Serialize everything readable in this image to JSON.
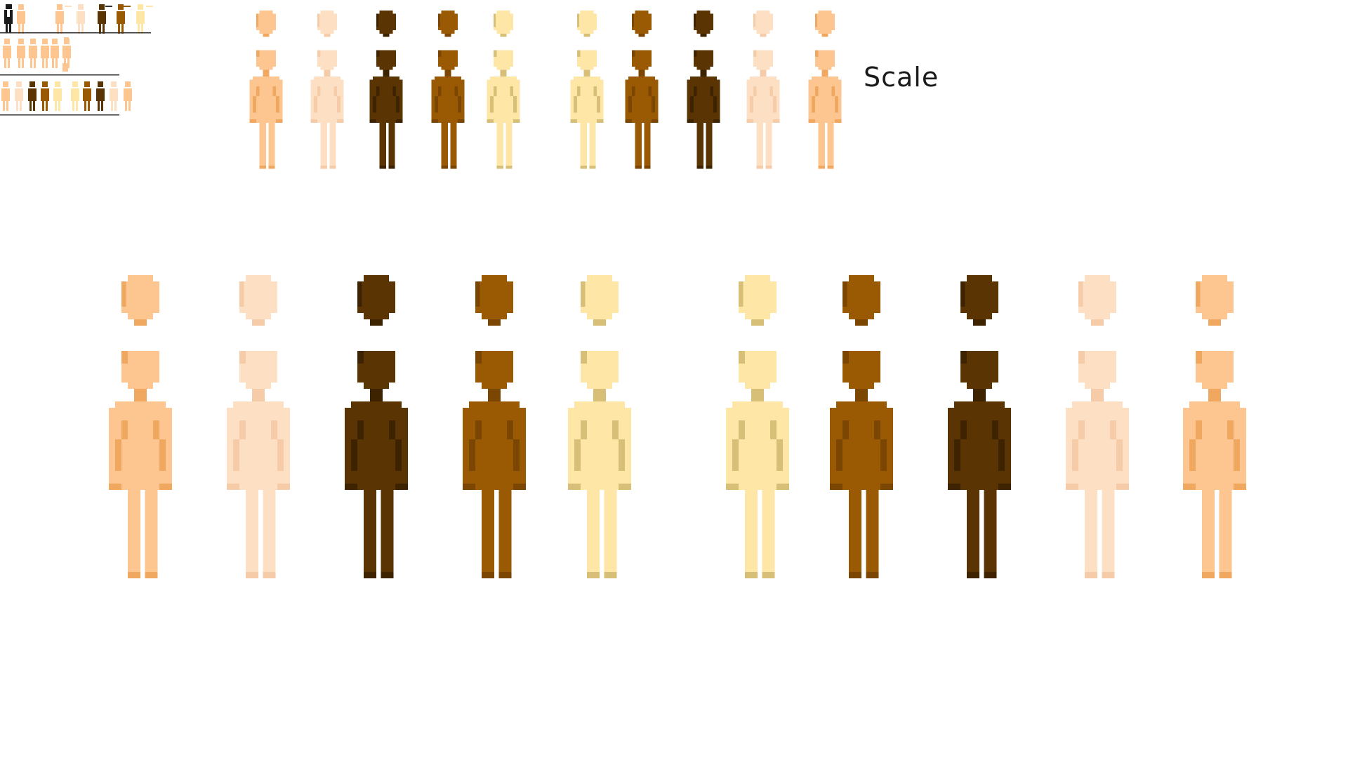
{
  "scale_label": "Scale",
  "skin_tones": [
    {
      "name": "peach",
      "base": "#fdc590",
      "shade": "#f0a860"
    },
    {
      "name": "pale",
      "base": "#fde0c4",
      "shade": "#f5cba8"
    },
    {
      "name": "dark",
      "base": "#5a3402",
      "shade": "#3e2301"
    },
    {
      "name": "brown",
      "base": "#9a5a04",
      "shade": "#7b4602"
    },
    {
      "name": "yellow",
      "base": "#fde6a6",
      "shade": "#d7bf78"
    },
    {
      "name": "yellow",
      "base": "#fde6a6",
      "shade": "#d7bf78"
    },
    {
      "name": "brown",
      "base": "#9a5a04",
      "shade": "#7b4602"
    },
    {
      "name": "dark",
      "base": "#5a3402",
      "shade": "#3e2301"
    },
    {
      "name": "pale",
      "base": "#fde0c4",
      "shade": "#f5cba8"
    },
    {
      "name": "peach",
      "base": "#fdc590",
      "shade": "#f0a860"
    }
  ],
  "thumbnail_tones": [
    "#fdc590",
    "#fde0c4",
    "#5a3402",
    "#9a5a04",
    "#fde6a6",
    "#fde6a6",
    "#9a5a04",
    "#5a3402",
    "#fde0c4",
    "#fdc590"
  ],
  "colors": {
    "background": "#ffffff",
    "divider": "#333333",
    "outfit_black": "#1a1a1a"
  }
}
